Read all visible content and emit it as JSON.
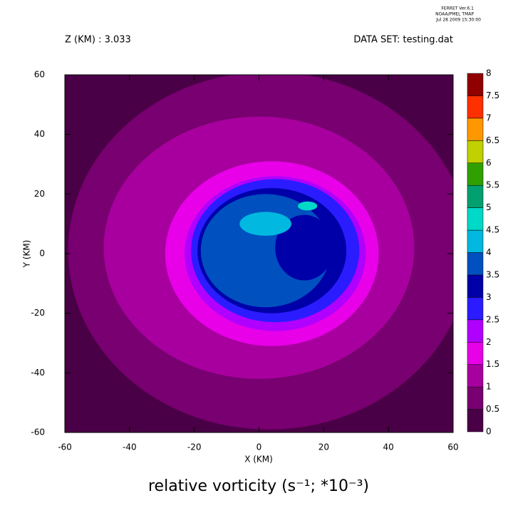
{
  "header": {
    "program": "FERRET Ver.6.1",
    "org": "NOAA/PMEL TMAP",
    "date": "Jul 28 2009 15:30:00"
  },
  "chart_data": {
    "type": "contour",
    "subtitle_left": "Z (KM) : 3.033",
    "subtitle_right": "DATA SET: testing.dat",
    "title": "relative vorticity (s⁻¹; *10⁻³)",
    "x_label": "X (KM)",
    "y_label": "Y (KM)",
    "xlim": [
      -60,
      60
    ],
    "ylim": [
      -60,
      60
    ],
    "xticks": [
      -60,
      -40,
      -20,
      0,
      20,
      40,
      60
    ],
    "yticks": [
      -60,
      -40,
      -20,
      0,
      20,
      40,
      60
    ],
    "levels": [
      0,
      0.5,
      1,
      1.5,
      2,
      2.5,
      3,
      3.5,
      4,
      4.5,
      5,
      5.5,
      6,
      6.5,
      7,
      7.5,
      8
    ],
    "colors": [
      "#4a0046",
      "#780070",
      "#a8009e",
      "#e800e8",
      "#b000ff",
      "#2a1cff",
      "#0000a8",
      "#0050c0",
      "#00b8e0",
      "#00d8c8",
      "#00a070",
      "#30a000",
      "#c0d000",
      "#ff9800",
      "#ff3000",
      "#900000"
    ],
    "regions": [
      {
        "x": 3,
        "y": 1,
        "rx": 62,
        "ry": 60,
        "value": 0.5
      },
      {
        "x": 0,
        "y": 2,
        "rx": 48,
        "ry": 44,
        "value": 1
      },
      {
        "x": 4,
        "y": 0,
        "rx": 33,
        "ry": 31,
        "value": 1.5
      },
      {
        "x": 5,
        "y": 0,
        "rx": 28,
        "ry": 26,
        "value": 2
      },
      {
        "x": 5,
        "y": 1,
        "rx": 26,
        "ry": 24,
        "value": 2.5
      },
      {
        "x": 4,
        "y": 1,
        "rx": 23,
        "ry": 21,
        "value": 3
      },
      {
        "x": 2,
        "y": 1,
        "rx": 20,
        "ry": 19,
        "value": 3.5
      },
      {
        "x": 14,
        "y": 2,
        "rx": 9,
        "ry": 11,
        "value": 3
      },
      {
        "x": 2,
        "y": 10,
        "rx": 8,
        "ry": 4,
        "value": 4
      },
      {
        "x": 15,
        "y": 16,
        "rx": 3,
        "ry": 1.5,
        "value": 4.5
      }
    ]
  }
}
